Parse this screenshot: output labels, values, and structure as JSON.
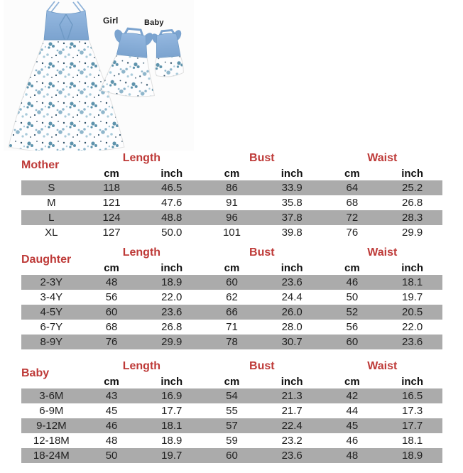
{
  "photo": {
    "labels": {
      "girl": "Girl",
      "baby": "Baby"
    },
    "items": [
      "mother-dress",
      "girl-dress",
      "baby-romper"
    ],
    "colors": {
      "denim_blue": "#86acd7",
      "denim_dark": "#6e99c4",
      "floral_teal": "#5e93ac",
      "floral_navy": "#2f5168",
      "floral_light": "#a9cbdb",
      "skirt_white": "#fdfdfe",
      "label_dark": "#1b1b1b"
    }
  },
  "style": {
    "header_red": "#be3a38",
    "row_gray": "#ababab",
    "text_black": "#1f1f1f"
  },
  "tables": [
    {
      "title": "Mother",
      "groups": [
        "Length",
        "Bust",
        "Waist"
      ],
      "units": [
        "cm",
        "inch",
        "cm",
        "inch",
        "cm",
        "inch"
      ],
      "rows": [
        [
          "S",
          "118",
          "46.5",
          "86",
          "33.9",
          "64",
          "25.2"
        ],
        [
          "M",
          "121",
          "47.6",
          "91",
          "35.8",
          "68",
          "26.8"
        ],
        [
          "L",
          "124",
          "48.8",
          "96",
          "37.8",
          "72",
          "28.3"
        ],
        [
          "XL",
          "127",
          "50.0",
          "101",
          "39.8",
          "76",
          "29.9"
        ]
      ]
    },
    {
      "title": "Daughter",
      "groups": [
        "Length",
        "Bust",
        "Waist"
      ],
      "units": [
        "cm",
        "inch",
        "cm",
        "inch",
        "cm",
        "inch"
      ],
      "rows": [
        [
          "2-3Y",
          "48",
          "18.9",
          "60",
          "23.6",
          "46",
          "18.1"
        ],
        [
          "3-4Y",
          "56",
          "22.0",
          "62",
          "24.4",
          "50",
          "19.7"
        ],
        [
          "4-5Y",
          "60",
          "23.6",
          "66",
          "26.0",
          "52",
          "20.5"
        ],
        [
          "6-7Y",
          "68",
          "26.8",
          "71",
          "28.0",
          "56",
          "22.0"
        ],
        [
          "8-9Y",
          "76",
          "29.9",
          "78",
          "30.7",
          "60",
          "23.6"
        ]
      ]
    },
    {
      "title": "Baby",
      "groups": [
        "Length",
        "Bust",
        "Waist"
      ],
      "units": [
        "cm",
        "inch",
        "cm",
        "inch",
        "cm",
        "inch"
      ],
      "rows": [
        [
          "3-6M",
          "43",
          "16.9",
          "54",
          "21.3",
          "42",
          "16.5"
        ],
        [
          "6-9M",
          "45",
          "17.7",
          "55",
          "21.7",
          "44",
          "17.3"
        ],
        [
          "9-12M",
          "46",
          "18.1",
          "57",
          "22.4",
          "45",
          "17.7"
        ],
        [
          "12-18M",
          "48",
          "18.9",
          "59",
          "23.2",
          "46",
          "18.1"
        ],
        [
          "18-24M",
          "50",
          "19.7",
          "60",
          "23.6",
          "48",
          "18.9"
        ]
      ]
    }
  ]
}
